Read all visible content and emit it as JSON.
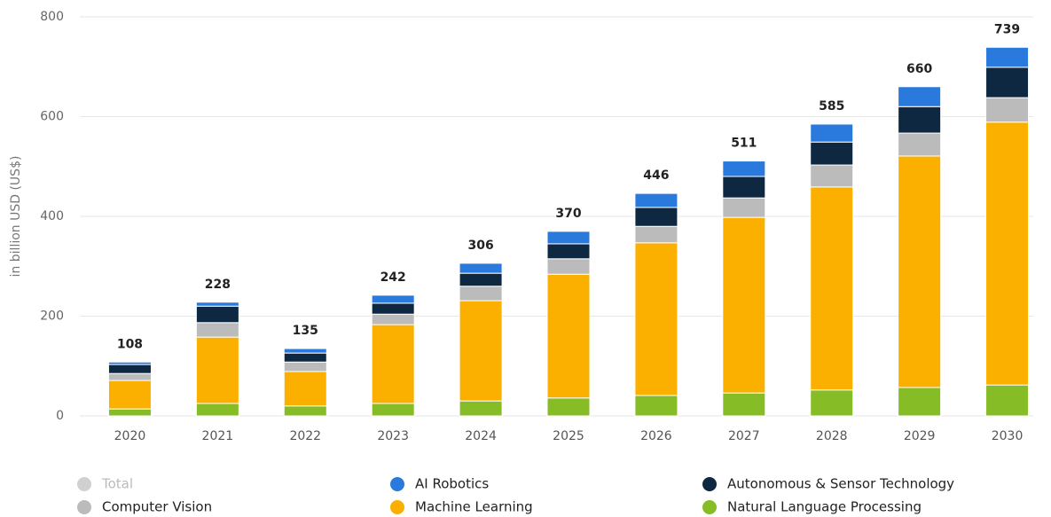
{
  "chart_data": {
    "type": "stacked_bar",
    "y_label": "in billion USD (US$)",
    "categories": [
      "2020",
      "2021",
      "2022",
      "2023",
      "2024",
      "2025",
      "2026",
      "2027",
      "2028",
      "2029",
      "2030"
    ],
    "series": [
      {
        "name": "Natural Language Processing",
        "color": "#86bc25",
        "values": [
          14,
          25,
          20,
          25,
          30,
          36,
          41,
          46,
          52,
          57,
          62
        ]
      },
      {
        "name": "Machine Learning",
        "color": "#fbb000",
        "values": [
          57,
          133,
          69,
          158,
          201,
          248,
          306,
          352,
          407,
          464,
          527
        ]
      },
      {
        "name": "Computer Vision",
        "color": "#bbbbbb",
        "values": [
          14,
          29,
          19,
          21,
          29,
          31,
          33,
          39,
          44,
          46,
          49
        ]
      },
      {
        "name": "Autonomous & Sensor Technology",
        "color": "#0e2841",
        "values": [
          18,
          33,
          18,
          22,
          26,
          30,
          38,
          43,
          46,
          53,
          61
        ]
      },
      {
        "name": "AI Robotics",
        "color": "#2a79dc",
        "values": [
          5,
          8,
          9,
          16,
          20,
          25,
          28,
          31,
          36,
          40,
          40
        ]
      },
      {
        "name": "Total",
        "color": "#d0d0d0",
        "hidden": true,
        "values": [
          108,
          228,
          135,
          242,
          306,
          370,
          446,
          511,
          585,
          660,
          739
        ]
      }
    ],
    "ylim": [
      0,
      800
    ],
    "yticks": [
      0,
      200,
      400,
      600,
      800
    ],
    "grid": true
  }
}
